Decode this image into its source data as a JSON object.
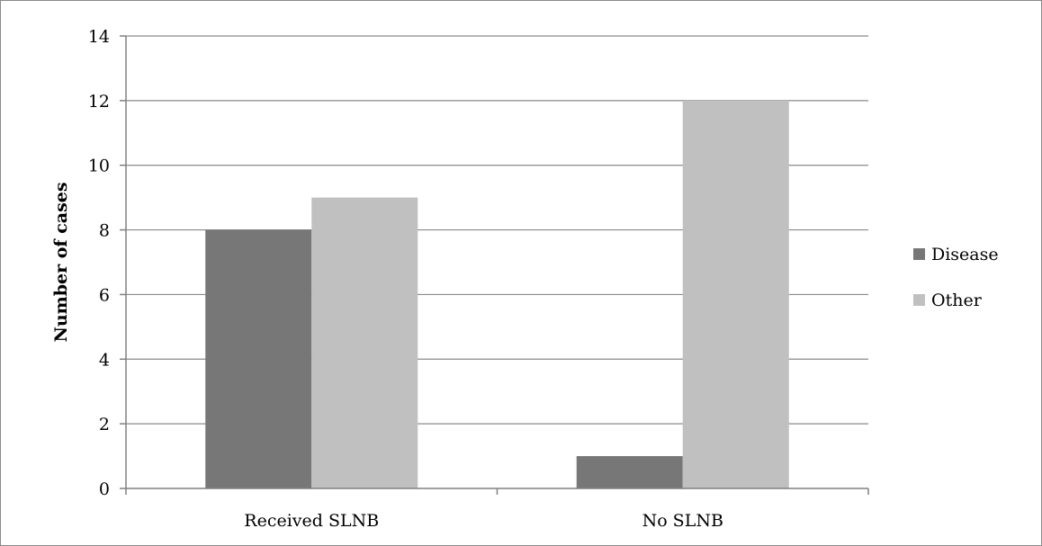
{
  "chart_data": {
    "type": "bar",
    "title": "",
    "xlabel": "",
    "ylabel": "Number of cases",
    "categories": [
      "Received SLNB",
      "No SLNB"
    ],
    "series": [
      {
        "name": "Disease",
        "values": [
          8,
          1
        ],
        "color": "#777777"
      },
      {
        "name": "Other",
        "values": [
          9,
          12
        ],
        "color": "#c0c0c0"
      }
    ],
    "ylim": [
      0,
      14
    ],
    "yticks": [
      0,
      2,
      4,
      6,
      8,
      10,
      12,
      14
    ],
    "grid": true,
    "legend": "right"
  }
}
